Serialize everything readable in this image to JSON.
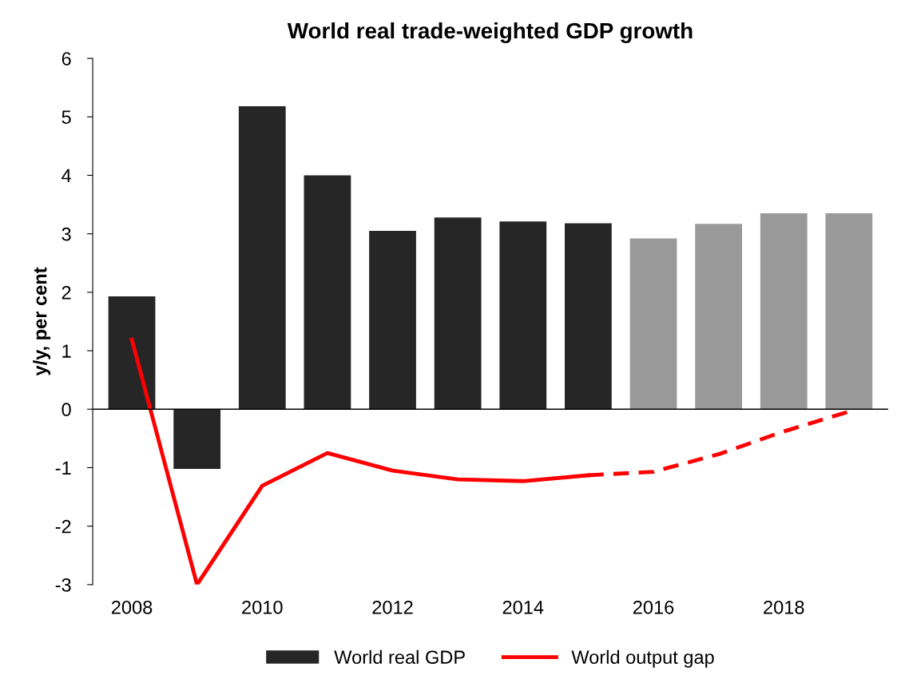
{
  "chart_data": {
    "type": "bar",
    "title": "World real trade-weighted GDP growth",
    "ylabel": "y/y, per cent",
    "categories": [
      "2008",
      null,
      "2010",
      null,
      "2012",
      null,
      "2014",
      null,
      "2016",
      null,
      "2018",
      null
    ],
    "series": [
      {
        "name": "World real GDP",
        "colors": [
          "#262626",
          "#262626",
          "#262626",
          "#262626",
          "#262626",
          "#262626",
          "#262626",
          "#262626",
          "#999999",
          "#999999",
          "#999999",
          "#999999"
        ],
        "values": [
          1.93,
          -1.02,
          5.18,
          4.0,
          3.05,
          3.28,
          3.21,
          3.18,
          2.92,
          3.17,
          3.35,
          3.35
        ]
      },
      {
        "name": "World output gap",
        "type": "line",
        "color": "#ff0000",
        "line_style": "solid",
        "values": [
          1.19,
          -3.0,
          -1.31,
          -0.75,
          -1.05,
          -1.2,
          -1.23,
          -1.13,
          null,
          null,
          null,
          null
        ]
      },
      {
        "type": "line",
        "color": "#ff0000",
        "line_style": "dashed",
        "values": [
          null,
          null,
          null,
          null,
          null,
          null,
          null,
          -1.13,
          -1.07,
          -0.77,
          -0.38,
          -0.04
        ]
      }
    ],
    "ylim": [
      -3,
      6
    ],
    "yticks": [
      -3,
      -2,
      -1,
      0,
      1,
      2,
      3,
      4,
      5,
      6
    ],
    "grid": false,
    "ref_lines": [
      {
        "axis": "y",
        "value": 0,
        "color": "#000000",
        "line_style": "solid"
      }
    ],
    "legend": "bottom"
  }
}
